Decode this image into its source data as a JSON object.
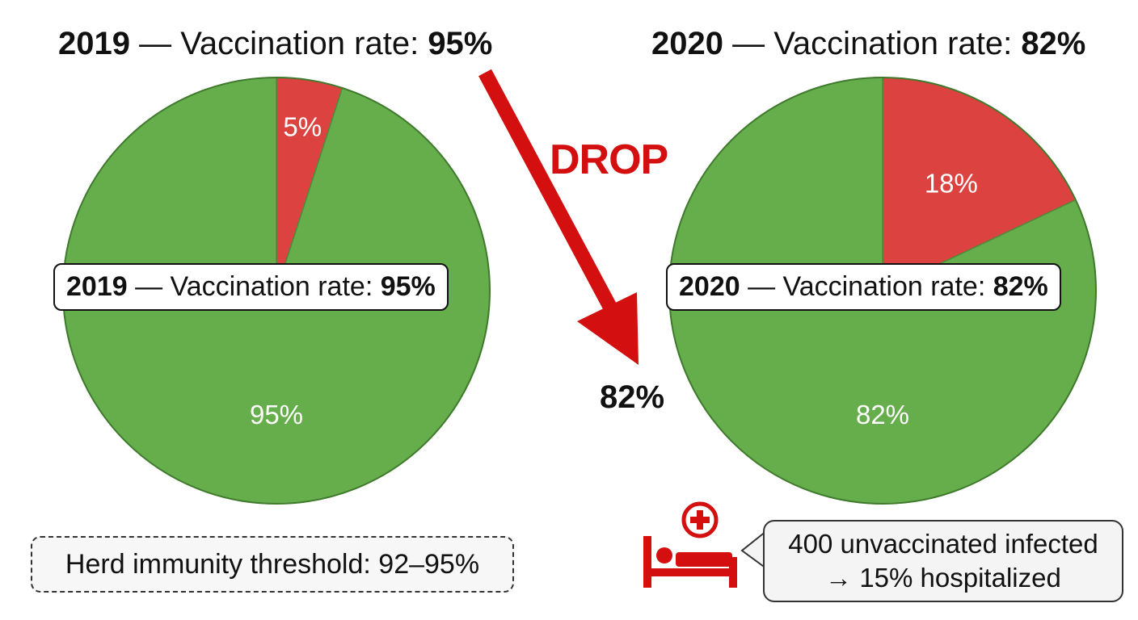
{
  "colors": {
    "vaccinated": "#66ad4c",
    "unvaccinated": "#dc4340",
    "accent": "#d40f0f"
  },
  "left": {
    "title_prefix": "2019 — ",
    "title_year": "2019",
    "title_dash": " — ",
    "title_text": "Vaccination rate: ",
    "title_value": "95%",
    "callout_year": "2019",
    "callout_text": " — Vaccination rate: ",
    "callout_value": "95%"
  },
  "right": {
    "title_year": "2020",
    "title_dash": " — ",
    "title_text": "Vaccination rate: ",
    "title_value": "82%",
    "callout_year": "2020",
    "callout_text": " — Vaccination rate: ",
    "callout_value": "82%"
  },
  "arrow": {
    "label": "DROP",
    "value": "82%"
  },
  "herd_note": "Herd immunity threshold: 92–95%",
  "hospital_note": {
    "line1": "400 unvaccinated infected",
    "line2": "→ 15% hospitalized",
    "icon": "hospital-bed-icon"
  },
  "chart_data": [
    {
      "type": "pie",
      "title": "2019 — Vaccination rate: 95%",
      "slices": [
        {
          "label": "5%",
          "value": 5,
          "color": "#dc4340"
        },
        {
          "label": "95%",
          "value": 95,
          "color": "#66ad4c"
        }
      ]
    },
    {
      "type": "pie",
      "title": "2020 — Vaccination rate: 82%",
      "slices": [
        {
          "label": "18%",
          "value": 18,
          "color": "#dc4340"
        },
        {
          "label": "82%",
          "value": 82,
          "color": "#66ad4c"
        }
      ]
    }
  ]
}
